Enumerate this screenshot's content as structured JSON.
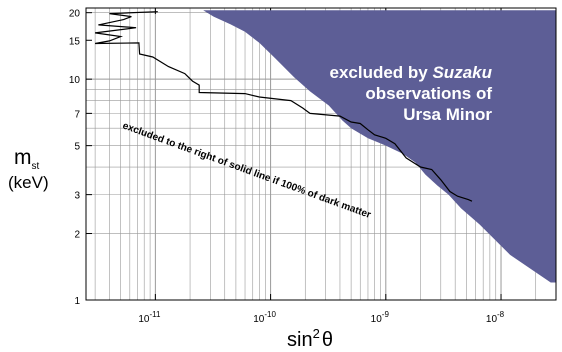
{
  "chart_data": {
    "type": "area",
    "x_scale": "log",
    "y_scale": "log",
    "xlim": [
      2.5e-12,
      3e-08
    ],
    "ylim": [
      1,
      21
    ],
    "grid": true,
    "xlabel": {
      "base": "sin",
      "sup": "2",
      "tail": "θ"
    },
    "ylabel": {
      "line1": "m",
      "line1_sub": "st",
      "line2": "(keV)"
    },
    "x_ticks": [
      {
        "value": 1e-11,
        "base": "10",
        "exp": "-11"
      },
      {
        "value": 1e-10,
        "base": "10",
        "exp": "-10"
      },
      {
        "value": 1e-09,
        "base": "10",
        "exp": "-9"
      },
      {
        "value": 1e-08,
        "base": "10",
        "exp": "-8"
      }
    ],
    "y_ticks": [
      {
        "value": 1,
        "label": "1"
      },
      {
        "value": 2,
        "label": "2"
      },
      {
        "value": 3,
        "label": "3"
      },
      {
        "value": 5,
        "label": "5"
      },
      {
        "value": 7,
        "label": "7"
      },
      {
        "value": 10,
        "label": "10"
      },
      {
        "value": 15,
        "label": "15"
      },
      {
        "value": 20,
        "label": "20"
      }
    ],
    "region_label": {
      "prefix": "excluded by ",
      "emph": "Suzaku",
      "line2": "observations of",
      "line3": "Ursa Minor"
    },
    "curve_label": "excluded to the right of solid line if 100% of dark matter",
    "colors": {
      "excluded_region": "#5d5e96",
      "curve": "#000000",
      "grid": "#999999"
    },
    "series": [
      {
        "style": "filled-region",
        "x": [
          2.6e-11,
          3e-08,
          3e-08,
          2.7e-08,
          1.2e-08,
          6.5e-09,
          4.5e-09,
          3.5e-09,
          2.8e-09,
          2.2e-09,
          1.8e-09,
          1.4e-09,
          1e-09,
          7e-10,
          5e-10,
          4.2e-10,
          3.2e-10,
          2.2e-10,
          1.6e-10,
          1.1e-10,
          8e-11,
          6e-11,
          4.5e-11,
          3.2e-11
        ],
        "y": [
          20.5,
          20.5,
          1.2,
          1.2,
          1.6,
          2.2,
          2.6,
          3.0,
          3.3,
          3.7,
          4.2,
          4.6,
          5.0,
          5.4,
          6.0,
          6.5,
          7.6,
          8.8,
          10.2,
          12.4,
          14.6,
          16.4,
          17.7,
          19.2
        ]
      },
      {
        "style": "line",
        "x": [
          1.05e-11,
          4e-12,
          6.2e-12,
          5.3e-12,
          3.2e-12,
          6.8e-12,
          3e-12,
          5e-12,
          4e-12,
          3e-12,
          7.2e-12,
          7.3e-12,
          9.5e-12,
          1.3e-11,
          1.8e-11,
          2.1e-11,
          2.4e-11,
          2.4e-11,
          6e-11,
          8e-11,
          1.5e-10,
          1.9e-10,
          2.2e-10,
          4e-10,
          5e-10,
          6e-10,
          7e-10,
          8e-10,
          1e-09,
          1.2e-09,
          1.5e-09,
          2e-09,
          2.5e-09,
          3e-09,
          3.6e-09,
          4.2e-09,
          5.2e-09,
          5.6e-09
        ],
        "y": [
          20.2,
          19.8,
          19.2,
          18.6,
          17.6,
          17.1,
          16.2,
          15.6,
          14.9,
          14.5,
          14.6,
          13.0,
          12.6,
          11.4,
          10.6,
          9.8,
          9.4,
          8.7,
          8.6,
          8.3,
          8.0,
          7.4,
          7.0,
          6.8,
          6.4,
          6.3,
          5.9,
          5.6,
          5.4,
          5.1,
          4.4,
          4.0,
          3.9,
          3.5,
          3.1,
          2.95,
          2.85,
          2.8
        ]
      }
    ]
  }
}
